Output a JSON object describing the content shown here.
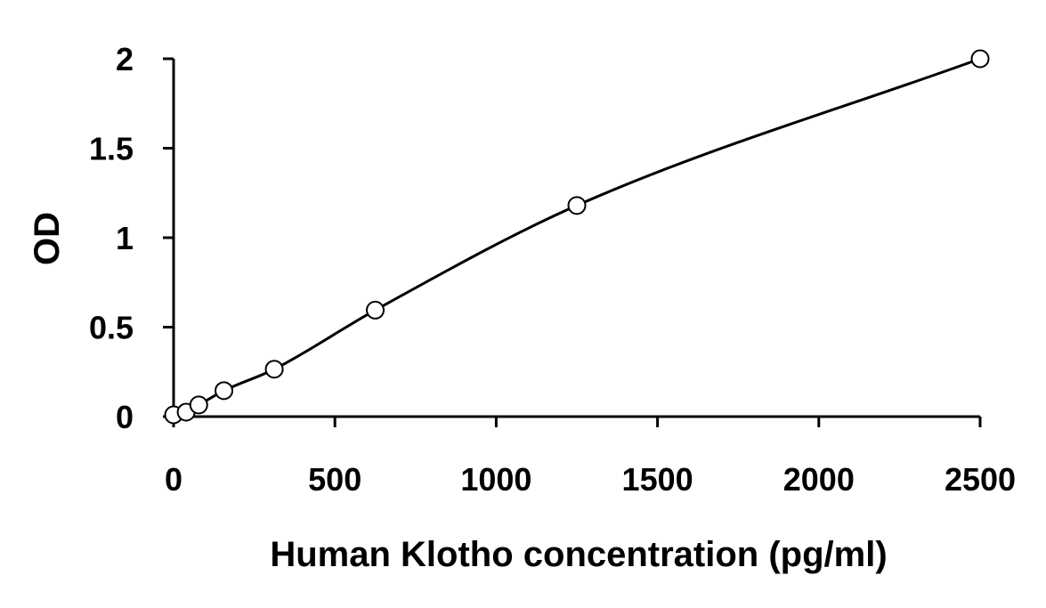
{
  "chart_data": {
    "type": "scatter",
    "title": "",
    "xlabel": "Human Klotho concentration (pg/ml)",
    "ylabel": "OD",
    "xlim": [
      0,
      2500
    ],
    "ylim": [
      0,
      2
    ],
    "x_ticks": [
      0,
      500,
      1000,
      1500,
      2000,
      2500
    ],
    "y_ticks": [
      0,
      0.5,
      1,
      1.5,
      2
    ],
    "x_tick_labels": [
      "0",
      "500",
      "1000",
      "1500",
      "2000",
      "2500"
    ],
    "y_tick_labels": [
      "0",
      "0.5",
      "1",
      "1.5",
      "2"
    ],
    "grid": false,
    "legend": "none",
    "series": [
      {
        "marker": "open-circle",
        "x": [
          0,
          39,
          78,
          156,
          312,
          625,
          1250,
          2500
        ],
        "y": [
          0.01,
          0.025,
          0.065,
          0.145,
          0.265,
          0.595,
          1.18,
          2.0
        ]
      }
    ],
    "fit_curve": {
      "style": "smooth-line",
      "x": [
        0,
        39,
        78,
        156,
        312,
        625,
        1250,
        2500
      ],
      "y": [
        0.01,
        0.025,
        0.065,
        0.145,
        0.265,
        0.595,
        1.18,
        2.0
      ]
    },
    "colors": {
      "axis": "#000000",
      "marker_stroke": "#000000",
      "marker_fill": "#ffffff",
      "curve": "#000000"
    }
  }
}
